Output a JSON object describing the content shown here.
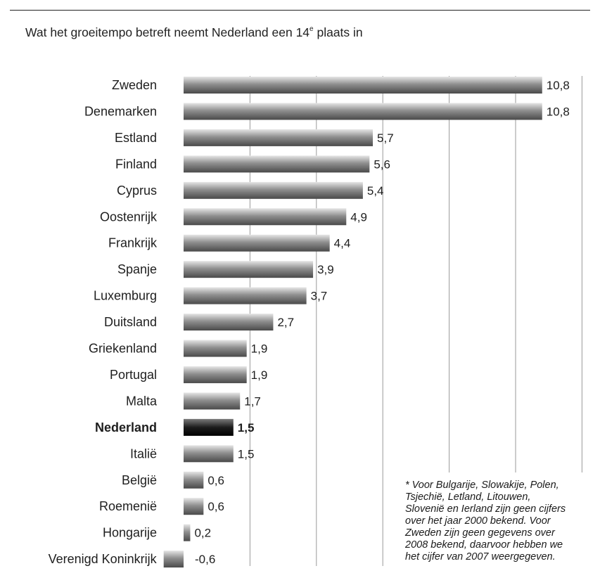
{
  "title_parts": {
    "before": "Wat het groeitempo betreft neemt Nederland een 14",
    "sup": "e",
    "after": " plaats in"
  },
  "footnote": "* Voor Bulgarije, Slowakije, Polen,\nTsjechië, Letland, Litouwen,\nSlovenië en Ierland zijn geen cijfers\nover het jaar 2000 bekend. Voor\nZweden zijn geen gegevens over\n2008 bekend, daarvoor hebben we\nhet cijfer van 2007 weergegeven.",
  "colors": {
    "bar": "#8c8c8c",
    "highlight": "#111111",
    "grid": "#9a9a9a"
  },
  "chart_data": {
    "type": "bar",
    "orientation": "horizontal",
    "title": "Wat het groeitempo betreft neemt Nederland een 14e plaats in",
    "categories": [
      "Zweden",
      "Denemarken",
      "Estland",
      "Finland",
      "Cyprus",
      "Oostenrijk",
      "Frankrijk",
      "Spanje",
      "Luxemburg",
      "Duitsland",
      "Griekenland",
      "Portugal",
      "Malta",
      "Nederland",
      "Italië",
      "België",
      "Roemenië",
      "Hongarije",
      "Verenigd Koninkrijk"
    ],
    "values": [
      10.8,
      10.8,
      5.7,
      5.6,
      5.4,
      4.9,
      4.4,
      3.9,
      3.7,
      2.7,
      1.9,
      1.9,
      1.7,
      1.5,
      1.5,
      0.6,
      0.6,
      0.2,
      -0.6
    ],
    "value_labels": [
      "10,8",
      "10,8",
      "5,7",
      "5,6",
      "5,4",
      "4,9",
      "4,4",
      "3,9",
      "3,7",
      "2,7",
      "1,9",
      "1,9",
      "1,7",
      "1,5",
      "1,5",
      "0,6",
      "0,6",
      "0,2",
      "-0,6"
    ],
    "highlight": "Nederland",
    "xlim": [
      -0.6,
      12
    ],
    "grid_x": [
      2,
      4,
      6,
      8,
      10,
      12
    ],
    "grid": true,
    "legend": "none"
  }
}
